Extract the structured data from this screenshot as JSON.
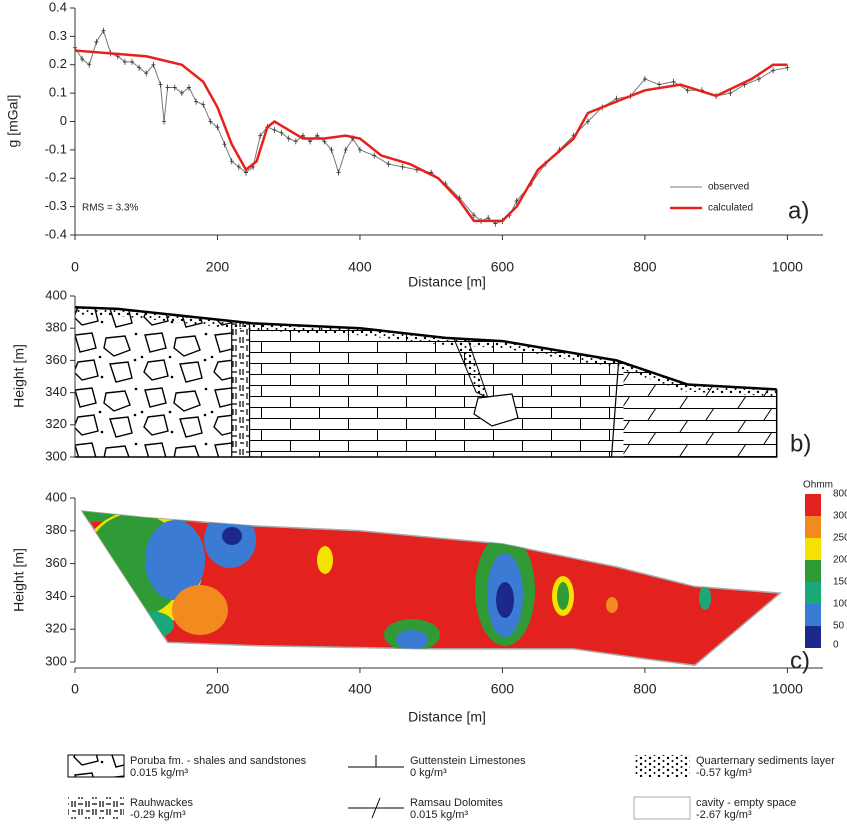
{
  "chart_data": [
    {
      "type": "line",
      "ylabel": "g [mGal]",
      "xlabel": "Distance [m]",
      "annotation": "RMS = 3.3%",
      "panel_label": "a)",
      "xlim": [
        0,
        1050
      ],
      "xticks": [
        0,
        200,
        400,
        600,
        800,
        1000
      ],
      "ylim": [
        -0.4,
        0.4
      ],
      "yticks": [
        -0.4,
        -0.3,
        -0.2,
        -0.1,
        0,
        0.1,
        0.2,
        0.3,
        0.4
      ],
      "series": [
        {
          "name": "observed",
          "color": "#777777",
          "marker": true,
          "x": [
            0,
            10,
            20,
            30,
            40,
            50,
            60,
            70,
            80,
            90,
            100,
            110,
            120,
            125,
            130,
            140,
            150,
            160,
            170,
            180,
            190,
            200,
            210,
            220,
            230,
            240,
            250,
            260,
            270,
            280,
            290,
            300,
            310,
            320,
            330,
            340,
            350,
            360,
            370,
            380,
            390,
            400,
            420,
            440,
            460,
            480,
            500,
            520,
            540,
            560,
            570,
            580,
            590,
            600,
            610,
            620,
            640,
            660,
            680,
            700,
            720,
            740,
            760,
            780,
            800,
            820,
            840,
            860,
            880,
            900,
            920,
            940,
            960,
            980,
            1000
          ],
          "values": [
            0.26,
            0.22,
            0.2,
            0.28,
            0.32,
            0.24,
            0.23,
            0.21,
            0.21,
            0.19,
            0.17,
            0.2,
            0.13,
            0.0,
            0.12,
            0.12,
            0.1,
            0.12,
            0.07,
            0.06,
            0.0,
            -0.02,
            -0.08,
            -0.14,
            -0.16,
            -0.18,
            -0.16,
            -0.05,
            -0.02,
            -0.03,
            -0.04,
            -0.06,
            -0.07,
            -0.05,
            -0.07,
            -0.05,
            -0.07,
            -0.1,
            -0.18,
            -0.1,
            -0.06,
            -0.1,
            -0.12,
            -0.15,
            -0.16,
            -0.17,
            -0.18,
            -0.22,
            -0.27,
            -0.33,
            -0.35,
            -0.34,
            -0.36,
            -0.35,
            -0.33,
            -0.28,
            -0.22,
            -0.15,
            -0.1,
            -0.05,
            0.0,
            0.05,
            0.08,
            0.09,
            0.15,
            0.13,
            0.14,
            0.11,
            0.11,
            0.09,
            0.1,
            0.13,
            0.15,
            0.18,
            0.19
          ]
        },
        {
          "name": "calculated",
          "color": "#e8201c",
          "marker": false,
          "x": [
            0,
            50,
            100,
            150,
            180,
            200,
            220,
            240,
            255,
            270,
            280,
            300,
            320,
            350,
            380,
            400,
            430,
            470,
            510,
            540,
            560,
            600,
            620,
            650,
            700,
            720,
            750,
            800,
            850,
            900,
            950,
            980,
            1000
          ],
          "values": [
            0.25,
            0.24,
            0.23,
            0.2,
            0.14,
            0.05,
            -0.08,
            -0.17,
            -0.14,
            -0.02,
            0,
            -0.03,
            -0.06,
            -0.06,
            -0.05,
            -0.06,
            -0.12,
            -0.15,
            -0.2,
            -0.28,
            -0.35,
            -0.35,
            -0.3,
            -0.17,
            -0.06,
            0.03,
            0.06,
            0.11,
            0.13,
            0.09,
            0.15,
            0.2,
            0.2
          ]
        }
      ]
    },
    {
      "type": "section",
      "ylabel": "Height [m]",
      "panel_label": "b)",
      "xlim": [
        0,
        1050
      ],
      "ylim": [
        300,
        400
      ],
      "yticks": [
        300,
        320,
        340,
        360,
        380,
        400
      ],
      "surface": {
        "x": [
          0,
          60,
          250,
          400,
          520,
          600,
          760,
          860,
          985
        ],
        "y": [
          393,
          392,
          383,
          380,
          374,
          372,
          360,
          345,
          342
        ]
      },
      "unit_edges": [
        220,
        245,
        770
      ]
    },
    {
      "type": "contour",
      "ylabel": "Height [m]",
      "xlabel": "Distance [m]",
      "panel_label": "c)",
      "xlim": [
        0,
        1050
      ],
      "xticks": [
        0,
        200,
        400,
        600,
        800,
        1000
      ],
      "ylim": [
        300,
        400
      ],
      "yticks": [
        300,
        320,
        340,
        360,
        380,
        400
      ],
      "outline_top": {
        "x": [
          10,
          100,
          250,
          400,
          600,
          760,
          870,
          990
        ],
        "y": [
          392,
          388,
          383,
          380,
          372,
          358,
          346,
          342
        ]
      },
      "outline_bottom": {
        "x": [
          990,
          870,
          800,
          700,
          500,
          250,
          130
        ],
        "y": [
          342,
          298,
          302,
          308,
          308,
          310,
          312
        ]
      },
      "colorbar": {
        "label": "Ohmm",
        "levels": [
          0,
          50,
          100,
          150,
          200,
          250,
          300,
          800
        ],
        "colors": [
          "#1b2a8a",
          "#3b7bd4",
          "#19a978",
          "#2f9a36",
          "#f4e300",
          "#f28a1f",
          "#e3211f"
        ]
      }
    }
  ],
  "legend": [
    {
      "label": "Poruba fm. - shales and sandstones",
      "density": "0.015 kg/m³"
    },
    {
      "label": "Guttenstein Limestones",
      "density": "0 kg/m³"
    },
    {
      "label": "Quarternary sediments layer",
      "density": "-0.57 kg/m³"
    },
    {
      "label": "Rauhwackes",
      "density": "-0.29 kg/m³"
    },
    {
      "label": "Ramsau Dolomites",
      "density": "0.015 kg/m³"
    },
    {
      "label": "cavity - empty space",
      "density": "-2.67 kg/m³"
    }
  ]
}
